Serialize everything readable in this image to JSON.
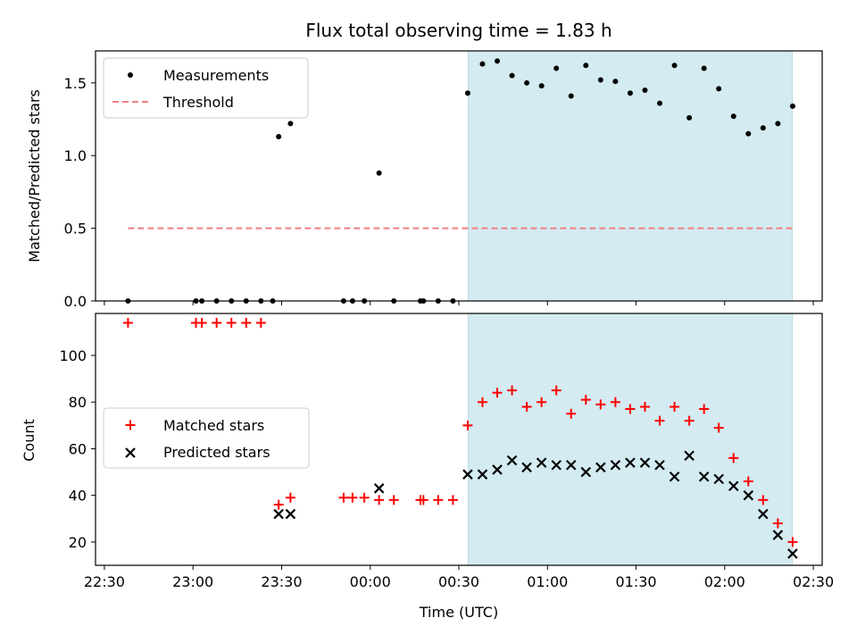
{
  "chart_data": {
    "type": "scatter",
    "title": "Flux total observing time = 1.83 h",
    "xlabel": "Time (UTC)",
    "x_tick_labels": [
      "22:30",
      "23:00",
      "23:30",
      "00:00",
      "00:30",
      "01:00",
      "01:30",
      "02:00",
      "02:30"
    ],
    "x_ticks_min": [
      -90,
      -60,
      -30,
      0,
      30,
      60,
      90,
      120,
      150
    ],
    "xlim_min": [
      -93,
      153
    ],
    "highlight_span_min": [
      33.2,
      142.9
    ],
    "colors": {
      "highlight": "#d3ebf1",
      "threshold": "#f08080",
      "matched": "#ff0000",
      "predicted": "#000000",
      "measurement": "#000000"
    },
    "panels": [
      {
        "id": "ratio",
        "ylabel": "Matched/Predicted stars",
        "ylim": [
          0,
          1.72
        ],
        "y_ticks": [
          0,
          0.5,
          1.0,
          1.5
        ],
        "y_tick_labels": [
          "0.0",
          "0.5",
          "1.0",
          "1.5"
        ],
        "legend": {
          "position": "upper-left",
          "entries": [
            {
              "label": "Measurements",
              "marker": "dot"
            },
            {
              "label": "Threshold",
              "marker": "dashed-line"
            }
          ]
        },
        "threshold": {
          "x_range": [
            -82,
            142.9
          ],
          "y": 0.5
        },
        "measurements": {
          "x": [
            -82,
            -59,
            -57,
            -52,
            -47,
            -42,
            -37,
            -33,
            -31,
            -27,
            -9,
            -6,
            -2,
            3,
            8,
            17,
            18,
            23,
            28,
            33,
            38,
            43,
            48,
            53,
            58,
            63,
            68,
            73,
            78,
            83,
            88,
            93,
            98,
            103,
            108,
            113,
            118,
            123,
            128,
            133,
            138,
            143
          ],
          "y": [
            0,
            0,
            0,
            0,
            0,
            0,
            0,
            0,
            1.13,
            1.22,
            0,
            0,
            0,
            0.88,
            0,
            0,
            0,
            0,
            0,
            1.43,
            1.63,
            1.65,
            1.55,
            1.5,
            1.48,
            1.6,
            1.41,
            1.62,
            1.52,
            1.51,
            1.43,
            1.45,
            1.36,
            1.62,
            1.26,
            1.6,
            1.46,
            1.27,
            1.15,
            1.19,
            1.22,
            1.34
          ]
        }
      },
      {
        "id": "counts",
        "ylabel": "Count",
        "ylim": [
          10,
          118
        ],
        "y_ticks": [
          20,
          40,
          60,
          80,
          100
        ],
        "y_tick_labels": [
          "20",
          "40",
          "60",
          "80",
          "100"
        ],
        "legend": {
          "position": "center-left",
          "entries": [
            {
              "label": "Matched stars",
              "marker": "plus"
            },
            {
              "label": "Predicted stars",
              "marker": "x"
            }
          ]
        },
        "series": [
          {
            "name": "Matched stars",
            "marker": "plus",
            "x": [
              -82,
              -59,
              -57,
              -52,
              -47,
              -42,
              -37,
              -31,
              -27,
              -9,
              -6,
              -2,
              3,
              8,
              17,
              18,
              23,
              28,
              33,
              38,
              43,
              48,
              53,
              58,
              63,
              68,
              73,
              78,
              83,
              88,
              93,
              98,
              103,
              108,
              113,
              118,
              123,
              128,
              133,
              138,
              143
            ],
            "y": [
              114,
              114,
              114,
              114,
              114,
              114,
              114,
              36,
              39,
              39,
              39,
              39,
              38,
              38,
              38,
              38,
              38,
              38,
              70,
              80,
              84,
              85,
              78,
              80,
              85,
              75,
              81,
              79,
              80,
              77,
              78,
              72,
              78,
              72,
              77,
              69,
              56,
              46,
              38,
              28,
              20
            ]
          },
          {
            "name": "Predicted stars",
            "marker": "x",
            "x": [
              -31,
              -27,
              3,
              33,
              38,
              43,
              48,
              53,
              58,
              63,
              68,
              73,
              78,
              83,
              88,
              93,
              98,
              103,
              108,
              113,
              118,
              123,
              128,
              133,
              138,
              143
            ],
            "y": [
              32,
              32,
              43,
              49,
              49,
              51,
              55,
              52,
              54,
              53,
              53,
              50,
              52,
              53,
              54,
              54,
              53,
              48,
              57,
              48,
              47,
              44,
              40,
              32,
              23,
              15
            ]
          }
        ]
      }
    ]
  }
}
